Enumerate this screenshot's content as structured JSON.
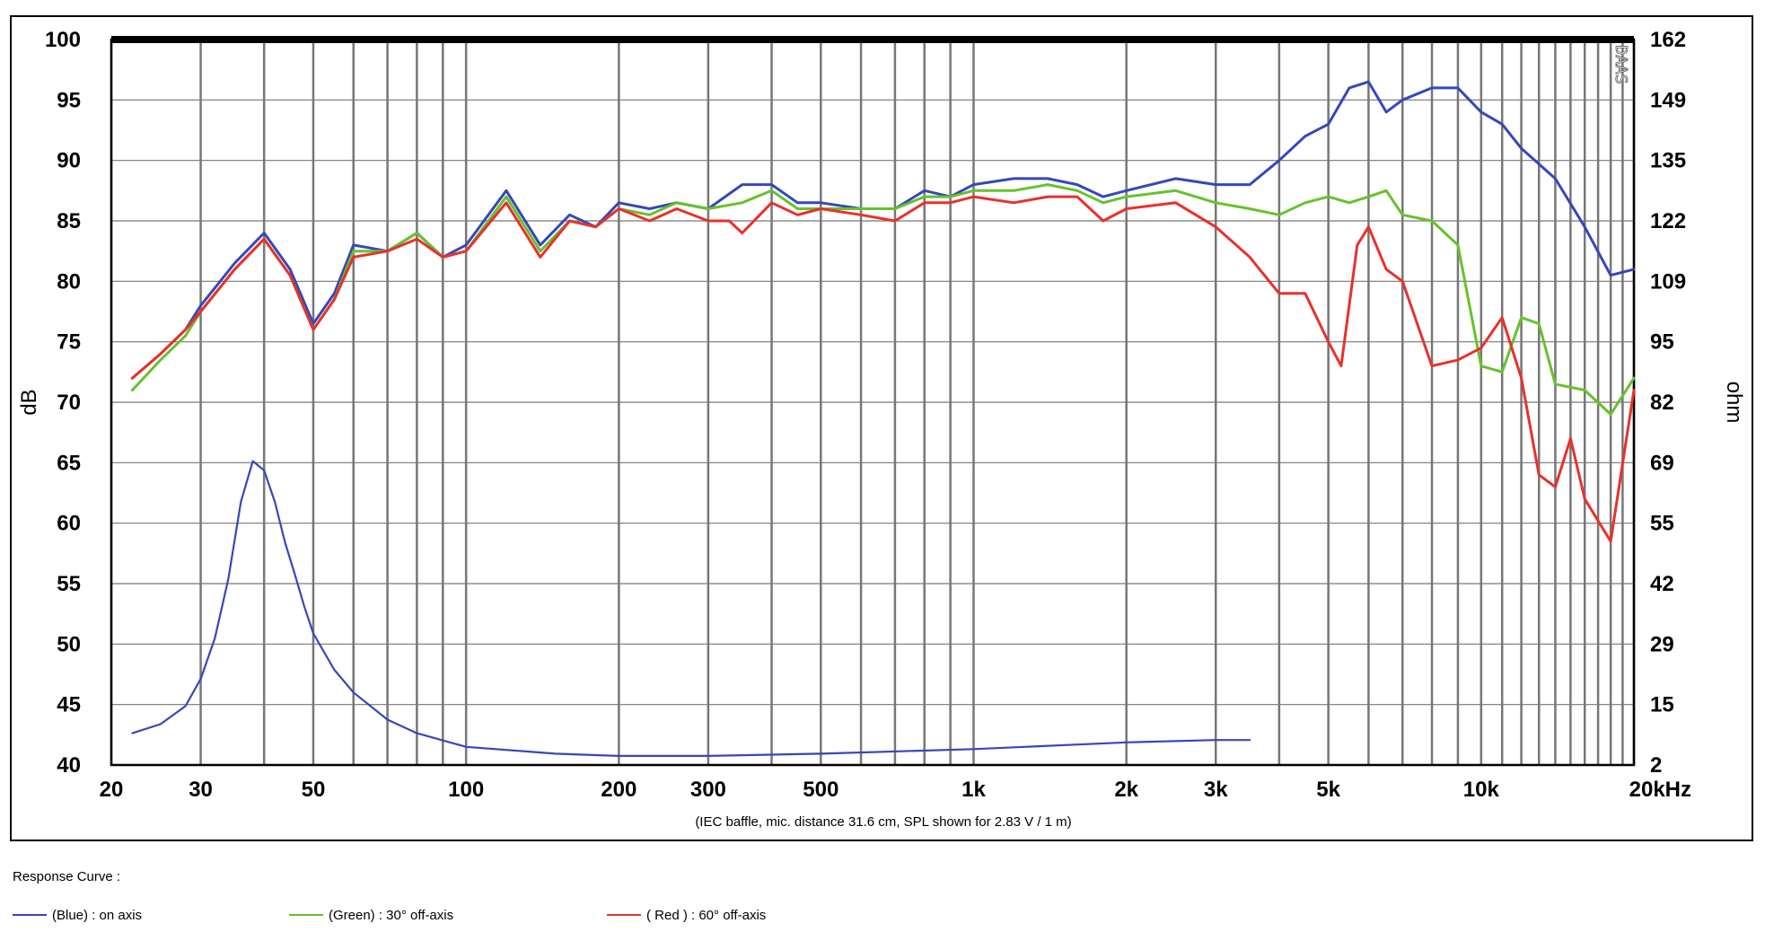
{
  "chart_data": {
    "type": "line",
    "xscale": "log",
    "xlim": [
      20,
      20000
    ],
    "ylim": [
      40,
      100
    ],
    "y2lim": [
      2,
      162
    ],
    "xticks": [
      20,
      30,
      50,
      100,
      200,
      300,
      500,
      1000,
      2000,
      3000,
      5000,
      10000,
      20000
    ],
    "xtick_labels": [
      "20",
      "30",
      "50",
      "100",
      "200",
      "300",
      "500",
      "1k",
      "2k",
      "3k",
      "5k",
      "10k",
      "20kHz"
    ],
    "yticks": [
      40,
      45,
      50,
      55,
      60,
      65,
      70,
      75,
      80,
      85,
      90,
      95,
      100
    ],
    "ytick_labels": [
      "40",
      "45",
      "50",
      "55",
      "60",
      "65",
      "70",
      "75",
      "80",
      "85",
      "90",
      "95",
      "100"
    ],
    "y2tick_labels": [
      "2",
      "15",
      "29",
      "42",
      "55",
      "69",
      "82",
      "95",
      "109",
      "122",
      "135",
      "149",
      "162"
    ],
    "ylabel": "dB",
    "y2label": "ohm",
    "note": "(IEC baffle, mic. distance 31.6 cm, SPL shown for 2.83 V / 1 m)",
    "watermark": "DAAS",
    "grid": true,
    "series": [
      {
        "name": "(Blue) : on axis",
        "color": "#3548b8",
        "x": [
          22,
          25,
          28,
          30,
          35,
          40,
          45,
          50,
          55,
          60,
          70,
          80,
          90,
          100,
          120,
          140,
          160,
          180,
          200,
          230,
          260,
          300,
          350,
          400,
          450,
          500,
          600,
          700,
          800,
          900,
          1000,
          1200,
          1400,
          1600,
          1800,
          2000,
          2500,
          3000,
          3500,
          4000,
          4500,
          5000,
          5500,
          6000,
          6500,
          7000,
          8000,
          9000,
          10000,
          11000,
          12000,
          14000,
          16000,
          18000,
          20000
        ],
        "y": [
          72,
          74,
          76,
          78,
          81.5,
          84,
          81,
          76.5,
          79,
          83,
          82.5,
          84,
          82,
          83,
          87.5,
          83,
          85.5,
          84.5,
          86.5,
          86,
          86.5,
          86,
          88,
          88,
          86.5,
          86.5,
          86,
          86,
          87.5,
          87,
          88,
          88.5,
          88.5,
          88,
          87,
          87.5,
          88.5,
          88,
          88,
          90,
          92,
          93,
          96,
          96.5,
          94,
          95,
          96,
          96,
          94,
          93,
          91,
          88.5,
          84.5,
          80.5,
          81
        ]
      },
      {
        "name": "(Green) : 30° off-axis",
        "color": "#66c22c",
        "x": [
          22,
          25,
          28,
          30,
          35,
          40,
          45,
          50,
          55,
          60,
          70,
          80,
          90,
          100,
          120,
          140,
          160,
          180,
          200,
          230,
          260,
          300,
          350,
          400,
          450,
          500,
          600,
          700,
          800,
          900,
          1000,
          1200,
          1400,
          1600,
          1800,
          2000,
          2500,
          3000,
          3500,
          4000,
          4500,
          5000,
          5500,
          6000,
          6500,
          7000,
          8000,
          9000,
          10000,
          11000,
          12000,
          13000,
          14000,
          16000,
          18000,
          20000
        ],
        "y": [
          71,
          73.5,
          75.5,
          77.5,
          81,
          83.5,
          80.5,
          76,
          78.5,
          82.5,
          82.5,
          84,
          82,
          82.5,
          87,
          82.5,
          85,
          84.5,
          86,
          85.5,
          86.5,
          86,
          86.5,
          87.5,
          86,
          86,
          86,
          86,
          87,
          87,
          87.5,
          87.5,
          88,
          87.5,
          86.5,
          87,
          87.5,
          86.5,
          86,
          85.5,
          86.5,
          87,
          86.5,
          87,
          87.5,
          85.5,
          85,
          83,
          73,
          72.5,
          77,
          76.5,
          71.5,
          71,
          69,
          72
        ]
      },
      {
        "name": "( Red ) : 60° off-axis",
        "color": "#e8312c",
        "x": [
          22,
          25,
          28,
          30,
          35,
          40,
          45,
          50,
          55,
          60,
          70,
          80,
          90,
          100,
          120,
          140,
          160,
          180,
          200,
          230,
          260,
          300,
          330,
          350,
          400,
          450,
          500,
          600,
          700,
          800,
          900,
          1000,
          1200,
          1400,
          1600,
          1800,
          2000,
          2500,
          3000,
          3500,
          4000,
          4500,
          5000,
          5300,
          5700,
          6000,
          6500,
          7000,
          8000,
          9000,
          10000,
          11000,
          12000,
          13000,
          14000,
          15000,
          16000,
          18000,
          20000
        ],
        "y": [
          72,
          74,
          76,
          77.5,
          81,
          83.5,
          80.5,
          76,
          78.5,
          82,
          82.5,
          83.5,
          82,
          82.5,
          86.5,
          82,
          85,
          84.5,
          86,
          85,
          86,
          85,
          85,
          84,
          86.5,
          85.5,
          86,
          85.5,
          85,
          86.5,
          86.5,
          87,
          86.5,
          87,
          87,
          85,
          86,
          86.5,
          84.5,
          82,
          79,
          79,
          75,
          73,
          83,
          84.5,
          81,
          80,
          73,
          73.5,
          74.5,
          77,
          72,
          64,
          63,
          67,
          62,
          58.5,
          71
        ]
      },
      {
        "name": "Impedance",
        "color": "#3548b8",
        "axis": "ohm",
        "x": [
          22,
          25,
          28,
          30,
          32,
          34,
          36,
          38,
          40,
          42,
          44,
          46,
          48,
          50,
          55,
          60,
          70,
          80,
          100,
          150,
          200,
          300,
          500,
          1000,
          2000,
          3000,
          3500
        ],
        "y": [
          9,
          11,
          15,
          21,
          30,
          43,
          60,
          69,
          67,
          60,
          51,
          44,
          37,
          31,
          23,
          18,
          12,
          9,
          6,
          4.5,
          4,
          4,
          4.5,
          5.5,
          7,
          7.5,
          7.5
        ]
      }
    ]
  },
  "legend": {
    "title": "Response Curve :",
    "items": [
      {
        "label": "(Blue) : on axis",
        "color": "#3548b8"
      },
      {
        "label": "(Green) : 30° off-axis",
        "color": "#66c22c"
      },
      {
        "label": "( Red ) : 60° off-axis",
        "color": "#e8312c"
      }
    ]
  }
}
